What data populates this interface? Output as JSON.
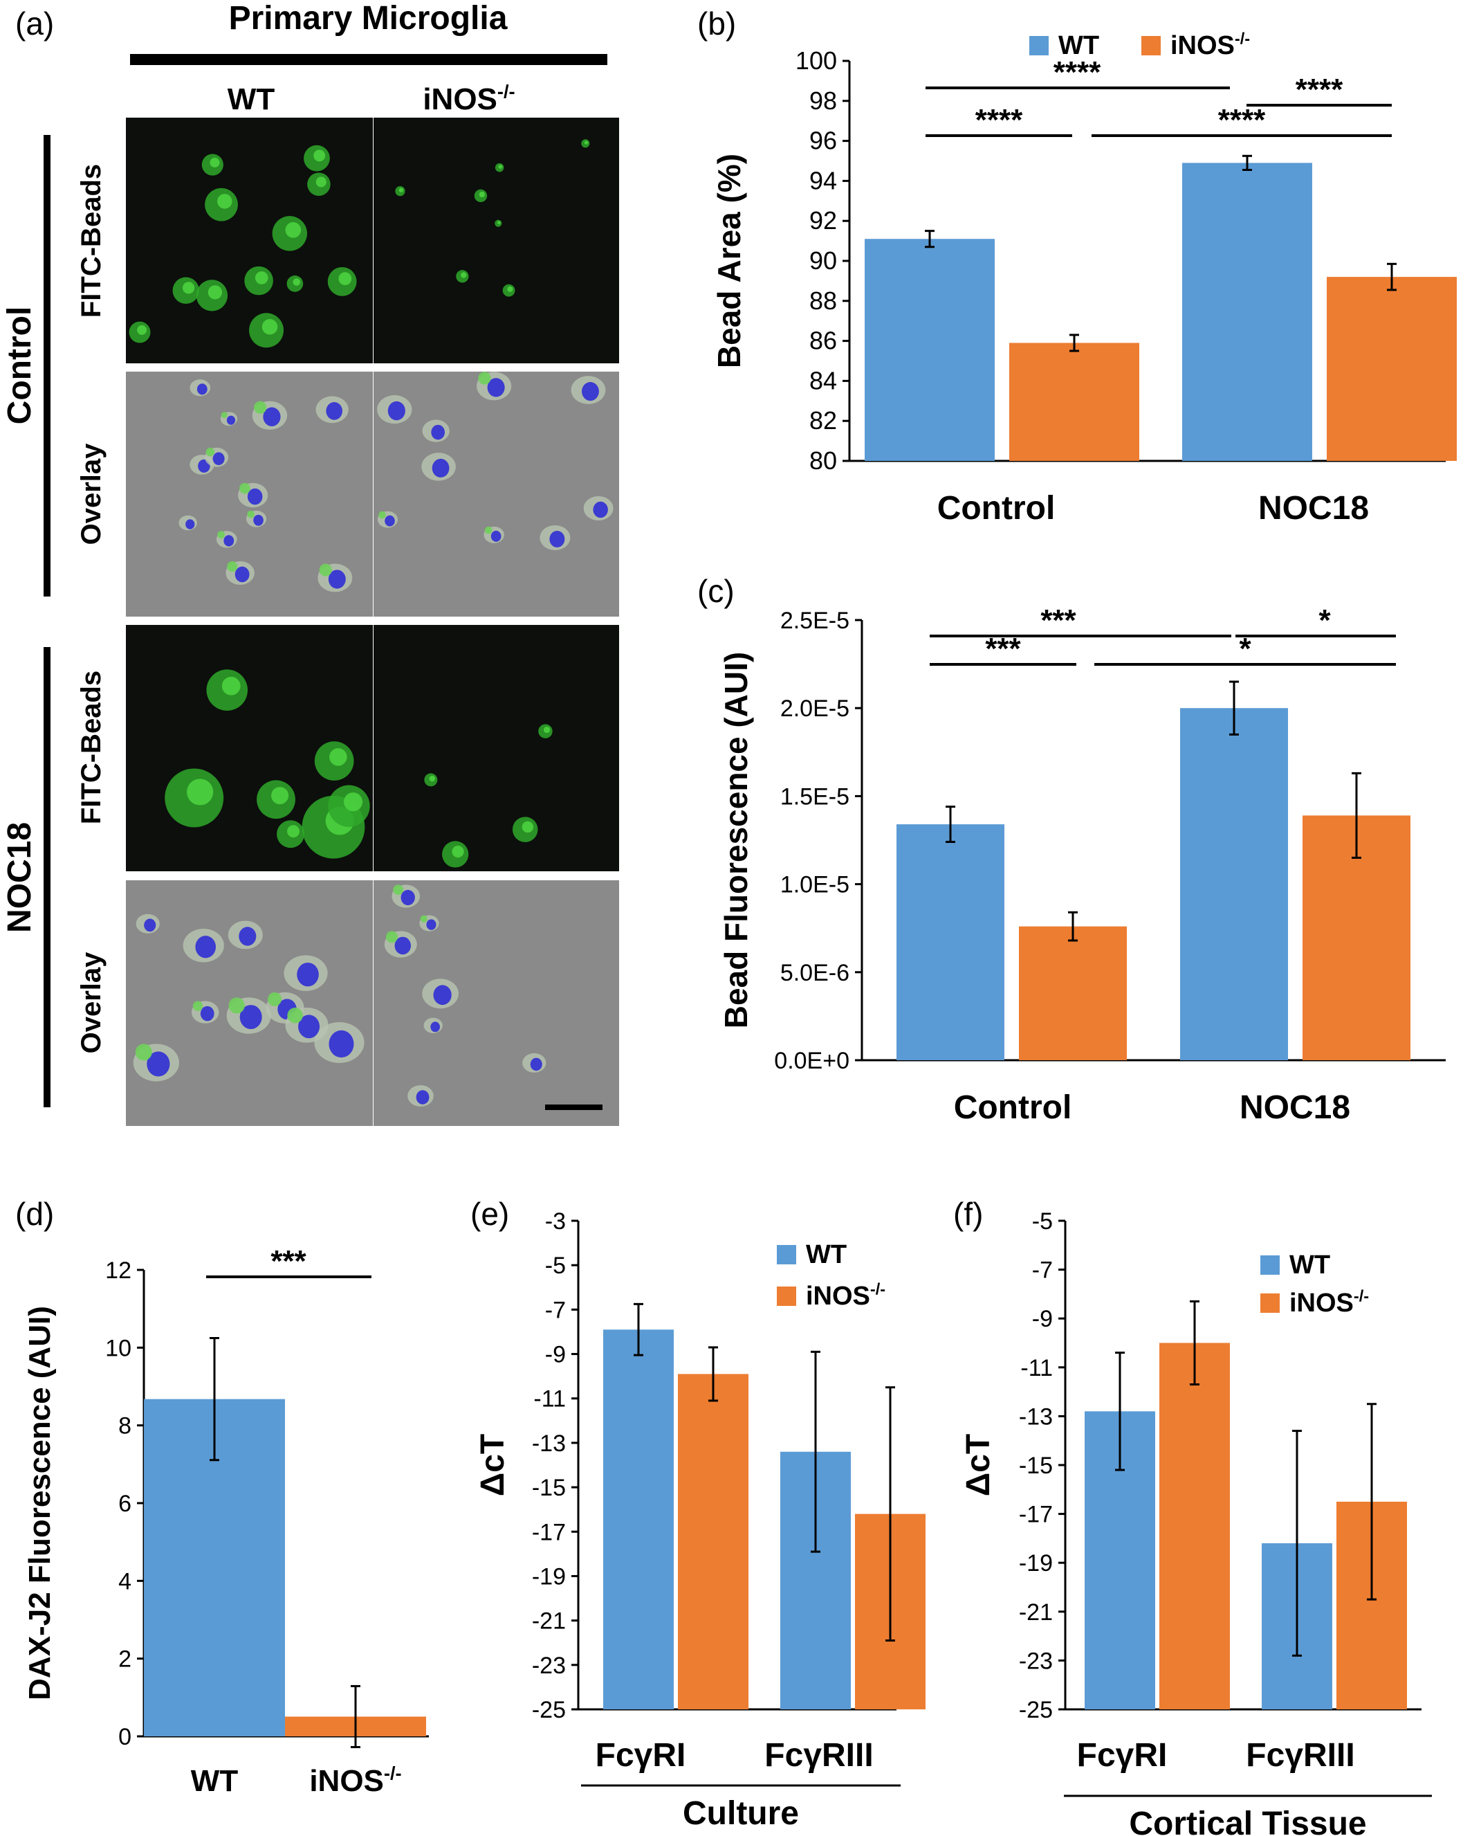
{
  "colors": {
    "wt": "#5b9bd5",
    "ko": "#ed7d31",
    "bar": "#000000",
    "micro_bg": "#0c0f0c",
    "overlay_bg": "#8a8a8a"
  },
  "panel_a": {
    "label": "(a)",
    "title": "Primary Microglia",
    "columns": [
      "WT",
      "iNOS"
    ],
    "column_sup": "-/-",
    "groups": [
      "Control",
      "NOC18"
    ],
    "rows": [
      "FITC-Beads",
      "Overlay",
      "FITC-Beads",
      "Overlay"
    ]
  },
  "chart_data": [
    {
      "id": "b",
      "label": "(b)",
      "type": "bar",
      "ylabel": "Bead Area (%)",
      "categories": [
        "Control",
        "NOC18"
      ],
      "ylim": [
        80,
        100
      ],
      "yticks": [
        "100",
        "98",
        "96",
        "94",
        "92",
        "90",
        "88",
        "86",
        "84",
        "82",
        "80"
      ],
      "legend": {
        "position": "top",
        "entries": [
          {
            "name": "WT",
            "sup": ""
          },
          {
            "name": "iNOS",
            "sup": "-/-"
          }
        ]
      },
      "series": [
        {
          "name": "WT",
          "values": [
            91.1,
            94.9
          ],
          "errors": [
            0.4,
            0.35
          ]
        },
        {
          "name": "iNOS-/-",
          "values": [
            85.9,
            89.2
          ],
          "errors": [
            0.4,
            0.65
          ]
        }
      ],
      "significance": [
        "****",
        "****",
        "****",
        "****"
      ]
    },
    {
      "id": "c",
      "label": "(c)",
      "type": "bar",
      "ylabel": "Bead Fluorescence (AUI)",
      "categories": [
        "Control",
        "NOC18"
      ],
      "ylim": [
        0,
        2.5e-05
      ],
      "yticks": [
        "2.5E-5",
        "2.0E-5",
        "1.5E-5",
        "1.0E-5",
        "5.0E-6",
        "0.0E+0"
      ],
      "series": [
        {
          "name": "WT",
          "values": [
            1.34e-05,
            2e-05
          ],
          "errors": [
            1e-06,
            1.5e-06
          ]
        },
        {
          "name": "iNOS-/-",
          "values": [
            7.6e-06,
            1.39e-05
          ],
          "errors": [
            8e-07,
            2.4e-06
          ]
        }
      ],
      "significance": [
        "***",
        "*",
        "***",
        "*"
      ]
    },
    {
      "id": "d",
      "label": "(d)",
      "type": "bar",
      "ylabel": "DAX-J2 Fluorescence (AUI)",
      "categories": [
        "WT",
        "iNOS"
      ],
      "category_sup": "-/-",
      "ylim": [
        0,
        13
      ],
      "yticks": [
        "12",
        "10",
        "8",
        "6",
        "4",
        "2",
        "0"
      ],
      "series": [
        {
          "name": "",
          "values": [
            9.4,
            0.55
          ],
          "errors": [
            1.7,
            0.85
          ]
        }
      ],
      "significance": [
        "***"
      ]
    },
    {
      "id": "e",
      "label": "(e)",
      "type": "bar",
      "ylabel": "ΔcT",
      "xgroup_label": "Culture",
      "categories": [
        "FcγRI",
        "FcγRIII"
      ],
      "ylim": [
        -25,
        -3
      ],
      "yticks": [
        "-3",
        "-5",
        "-7",
        "-9",
        "-11",
        "-13",
        "-15",
        "-17",
        "-19",
        "-21",
        "-23",
        "-25"
      ],
      "legend": {
        "position": "top-right",
        "entries": [
          {
            "name": "WT",
            "sup": ""
          },
          {
            "name": "iNOS",
            "sup": "-/-"
          }
        ]
      },
      "series": [
        {
          "name": "WT",
          "values": [
            -7.9,
            -13.4
          ],
          "errors": [
            1.15,
            4.5
          ]
        },
        {
          "name": "iNOS-/-",
          "values": [
            -9.9,
            -16.2
          ],
          "errors": [
            1.2,
            5.7
          ]
        }
      ]
    },
    {
      "id": "f",
      "label": "(f)",
      "type": "bar",
      "ylabel": "ΔcT",
      "xgroup_label": "Cortical Tissue",
      "categories": [
        "FcγRI",
        "FcγRIII"
      ],
      "ylim": [
        -25,
        -5
      ],
      "yticks": [
        "-5",
        "-7",
        "-9",
        "-11",
        "-13",
        "-15",
        "-17",
        "-19",
        "-21",
        "-23",
        "-25"
      ],
      "legend": {
        "position": "top-right",
        "entries": [
          {
            "name": "WT",
            "sup": ""
          },
          {
            "name": "iNOS",
            "sup": "-/-"
          }
        ]
      },
      "series": [
        {
          "name": "WT",
          "values": [
            -12.8,
            -18.2
          ],
          "errors": [
            2.4,
            4.6
          ]
        },
        {
          "name": "iNOS-/-",
          "values": [
            -10.0,
            -16.5
          ],
          "errors": [
            1.7,
            4.0
          ]
        }
      ]
    }
  ]
}
